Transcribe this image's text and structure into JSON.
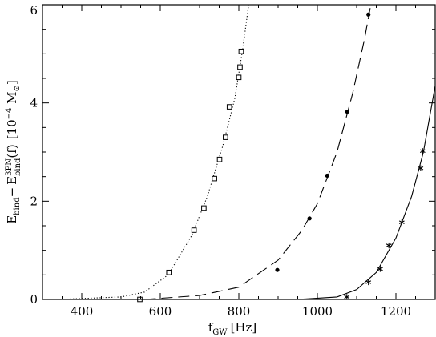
{
  "chart_data": {
    "type": "scatter",
    "title": "",
    "xlabel": {
      "main": "f",
      "sub": "GW",
      "unit": "[Hz]"
    },
    "ylabel": {
      "e1": "E",
      "e1_sub": "bind",
      "minus": "−",
      "e2": "E",
      "e2_sup": "3PN",
      "e2_sub": "bind",
      "e2_arg": "(f)",
      "unit_prefix": "[10",
      "unit_exp": "−4",
      "unit_main": " M",
      "unit_sub": "⊙",
      "unit_close": "]"
    },
    "xlim": [
      300,
      1300
    ],
    "ylim": [
      0,
      6
    ],
    "x_ticks": [
      400,
      600,
      800,
      1000,
      1200
    ],
    "x_tick_labels": [
      "400",
      "600",
      "800",
      "1000",
      "1200"
    ],
    "y_ticks": [
      0,
      2,
      4,
      6
    ],
    "y_tick_labels": [
      "0",
      "2",
      "4",
      "6"
    ],
    "grid": false,
    "series": [
      {
        "marker": "square",
        "line_style": "dotted",
        "points": [
          {
            "x": 548,
            "y": 0.0
          },
          {
            "x": 622,
            "y": 0.55
          },
          {
            "x": 686,
            "y": 1.41
          },
          {
            "x": 711,
            "y": 1.86
          },
          {
            "x": 738,
            "y": 2.46
          },
          {
            "x": 751,
            "y": 2.85
          },
          {
            "x": 766,
            "y": 3.3
          },
          {
            "x": 776,
            "y": 3.92
          },
          {
            "x": 800,
            "y": 4.52
          },
          {
            "x": 803,
            "y": 4.73
          },
          {
            "x": 806,
            "y": 5.05
          }
        ],
        "curve": [
          {
            "x": 340,
            "y": 0.0
          },
          {
            "x": 500,
            "y": 0.05
          },
          {
            "x": 560,
            "y": 0.15
          },
          {
            "x": 620,
            "y": 0.5
          },
          {
            "x": 680,
            "y": 1.3
          },
          {
            "x": 720,
            "y": 2.1
          },
          {
            "x": 760,
            "y": 3.15
          },
          {
            "x": 790,
            "y": 4.1
          },
          {
            "x": 810,
            "y": 5.1
          },
          {
            "x": 825,
            "y": 6.0
          }
        ]
      },
      {
        "marker": "dot",
        "line_style": "dashed",
        "points": [
          {
            "x": 898,
            "y": 0.6
          },
          {
            "x": 980,
            "y": 1.65
          },
          {
            "x": 1025,
            "y": 2.52
          },
          {
            "x": 1076,
            "y": 3.82
          },
          {
            "x": 1130,
            "y": 5.8
          }
        ],
        "curve": [
          {
            "x": 560,
            "y": 0.0
          },
          {
            "x": 700,
            "y": 0.08
          },
          {
            "x": 800,
            "y": 0.25
          },
          {
            "x": 900,
            "y": 0.8
          },
          {
            "x": 960,
            "y": 1.4
          },
          {
            "x": 1000,
            "y": 1.95
          },
          {
            "x": 1050,
            "y": 3.0
          },
          {
            "x": 1090,
            "y": 4.2
          },
          {
            "x": 1120,
            "y": 5.3
          },
          {
            "x": 1135,
            "y": 5.95
          }
        ]
      },
      {
        "marker": "star",
        "line_style": "solid",
        "points": [
          {
            "x": 1075,
            "y": 0.05
          },
          {
            "x": 1130,
            "y": 0.35
          },
          {
            "x": 1160,
            "y": 0.62
          },
          {
            "x": 1182,
            "y": 1.1
          },
          {
            "x": 1215,
            "y": 1.57
          },
          {
            "x": 1263,
            "y": 2.67
          },
          {
            "x": 1268,
            "y": 3.02
          }
        ],
        "curve": [
          {
            "x": 950,
            "y": 0.0
          },
          {
            "x": 1050,
            "y": 0.05
          },
          {
            "x": 1100,
            "y": 0.2
          },
          {
            "x": 1150,
            "y": 0.55
          },
          {
            "x": 1200,
            "y": 1.25
          },
          {
            "x": 1240,
            "y": 2.1
          },
          {
            "x": 1270,
            "y": 3.0
          },
          {
            "x": 1300,
            "y": 4.35
          }
        ]
      }
    ]
  }
}
